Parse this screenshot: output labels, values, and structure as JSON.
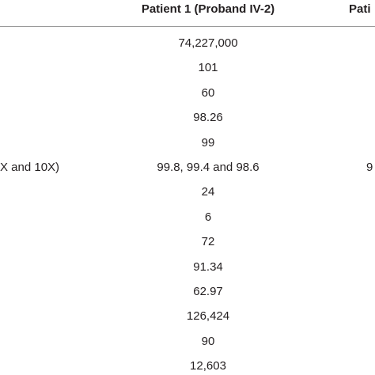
{
  "table": {
    "header": {
      "col2": "Patient 1 (Proband IV-2)",
      "col3": "Pati"
    },
    "rows": [
      {
        "col2": "74,227,000"
      },
      {
        "col2": "101"
      },
      {
        "col2": "60"
      },
      {
        "col2": "98.26"
      },
      {
        "col2": "99"
      },
      {
        "col1": "X and 10X)",
        "col2": "99.8, 99.4 and 98.6",
        "col3": "9"
      },
      {
        "col2": "24"
      },
      {
        "col2": "6"
      },
      {
        "col2": "72"
      },
      {
        "col2": "91.34"
      },
      {
        "col2": "62.97"
      },
      {
        "col2": "126,424"
      },
      {
        "col2": "90"
      },
      {
        "col2": "12,603"
      }
    ]
  }
}
